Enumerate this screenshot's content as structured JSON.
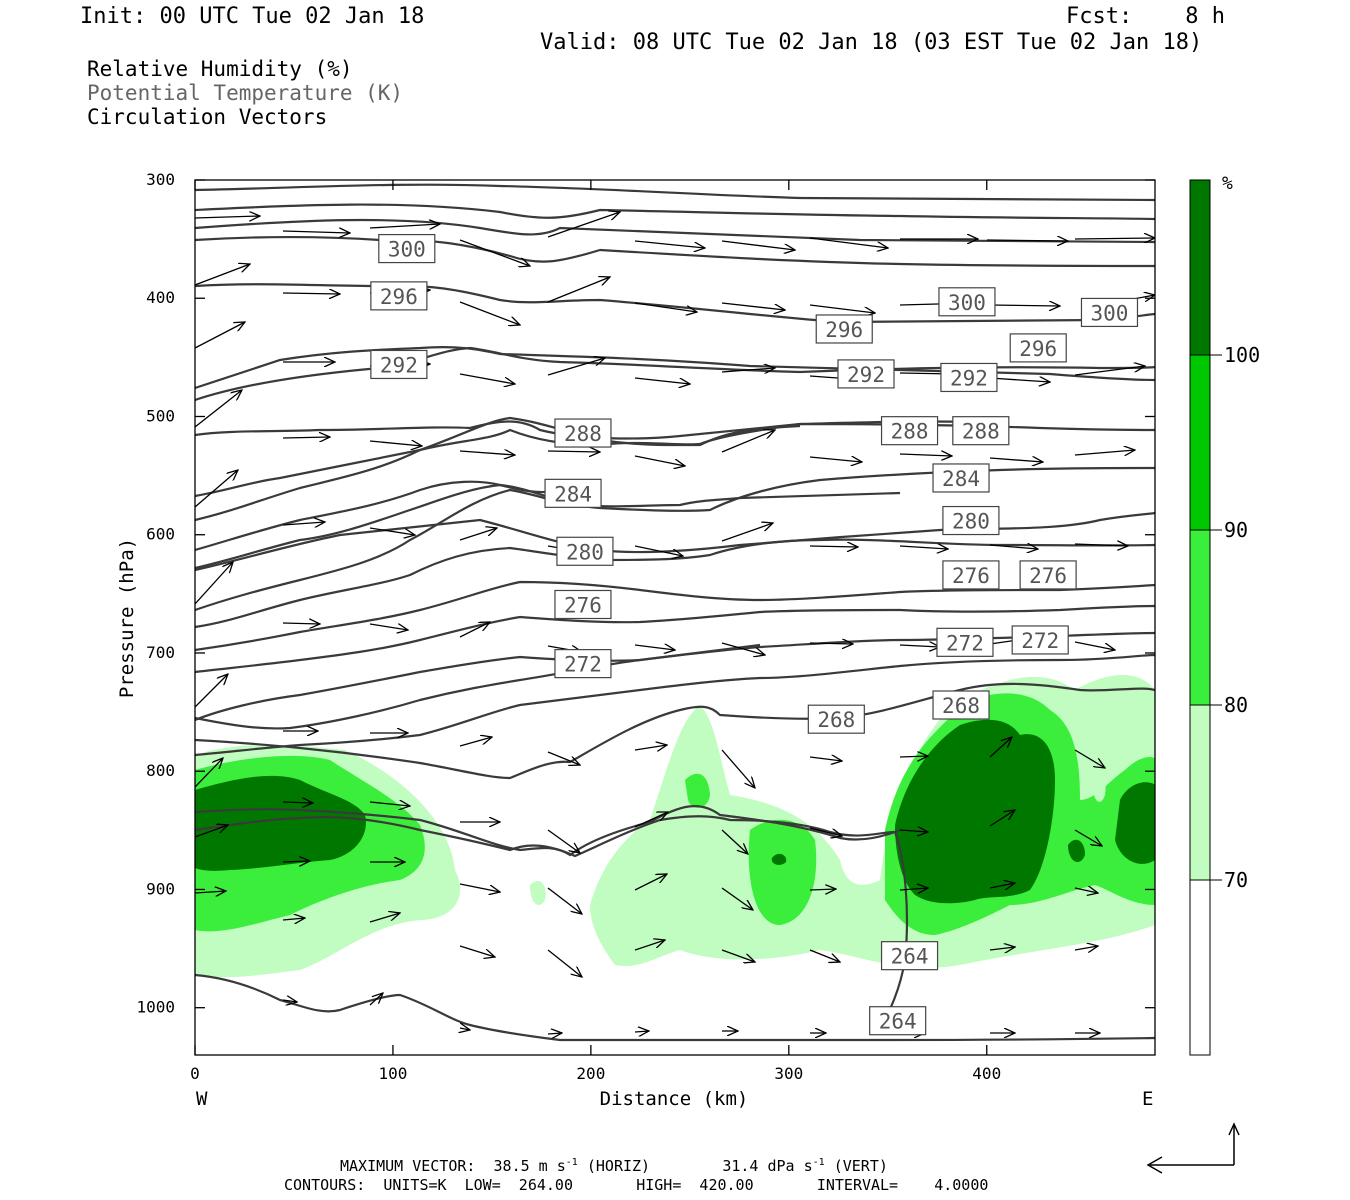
{
  "header": {
    "init": "Init: 00 UTC Tue 02 Jan 18",
    "fcst": "Fcst:    8 h",
    "valid": "Valid: 08 UTC Tue 02 Jan 18 (03 EST Tue 02 Jan 18)"
  },
  "legend_titles": {
    "rh": "Relative Humidity (%)",
    "theta": "Potential Temperature (K)",
    "vectors": "Circulation Vectors"
  },
  "footer": {
    "max_vector_prefix": "MAXIMUM VECTOR:  38.5 m s",
    "max_vector_mid": "(HORIZ)        31.4 dPa s",
    "max_vector_suffix": "(VERT)",
    "sup": "-1",
    "contours": "CONTOURS:  UNITS=K  LOW=  264.00       HIGH=  420.00       INTERVAL=    4.0000"
  },
  "colors": {
    "rh_70": "#c1fcc1",
    "rh_80": "#3cee3c",
    "rh_90": "#00c800",
    "rh_100": "#007800",
    "contour": "#3a3a3a"
  },
  "chart_data": {
    "type": "contour",
    "xlabel": "Distance (km)",
    "ylabel": "Pressure (hPa)",
    "xlim": [
      0,
      485
    ],
    "ylim": [
      1040,
      300
    ],
    "x_ticks": [
      0,
      100,
      200,
      300,
      400
    ],
    "y_ticks": [
      300,
      400,
      500,
      600,
      700,
      800,
      900,
      1000
    ],
    "x_end_labels": {
      "left": "W",
      "right": "E"
    },
    "colorbar": {
      "unit": "%",
      "levels": [
        70,
        80,
        90,
        100
      ],
      "colors": [
        "#ffffff",
        "#c1fcc1",
        "#3cee3c",
        "#00c800",
        "#007800"
      ]
    },
    "theta_labels": [
      {
        "text": "300",
        "x": 107,
        "p": 358
      },
      {
        "text": "296",
        "x": 103,
        "p": 398
      },
      {
        "text": "292",
        "x": 103,
        "p": 456
      },
      {
        "text": "288",
        "x": 196,
        "p": 514
      },
      {
        "text": "284",
        "x": 191,
        "p": 565
      },
      {
        "text": "280",
        "x": 197,
        "p": 614
      },
      {
        "text": "276",
        "x": 196,
        "p": 659
      },
      {
        "text": "272",
        "x": 196,
        "p": 709
      },
      {
        "text": "268",
        "x": 324,
        "p": 756
      },
      {
        "text": "296",
        "x": 328,
        "p": 426
      },
      {
        "text": "292",
        "x": 339,
        "p": 464
      },
      {
        "text": "288",
        "x": 361,
        "p": 512
      },
      {
        "text": "288",
        "x": 397,
        "p": 512
      },
      {
        "text": "284",
        "x": 387,
        "p": 552
      },
      {
        "text": "280",
        "x": 392,
        "p": 588
      },
      {
        "text": "276",
        "x": 392,
        "p": 634
      },
      {
        "text": "276",
        "x": 431,
        "p": 634
      },
      {
        "text": "272",
        "x": 389,
        "p": 691
      },
      {
        "text": "272",
        "x": 427,
        "p": 689
      },
      {
        "text": "268",
        "x": 387,
        "p": 744
      },
      {
        "text": "300",
        "x": 390,
        "p": 403
      },
      {
        "text": "300",
        "x": 462,
        "p": 412
      },
      {
        "text": "296",
        "x": 426,
        "p": 442
      },
      {
        "text": "292",
        "x": 391,
        "p": 467
      },
      {
        "text": "264",
        "x": 361,
        "p": 956
      },
      {
        "text": "264",
        "x": 355,
        "p": 1011
      }
    ]
  }
}
